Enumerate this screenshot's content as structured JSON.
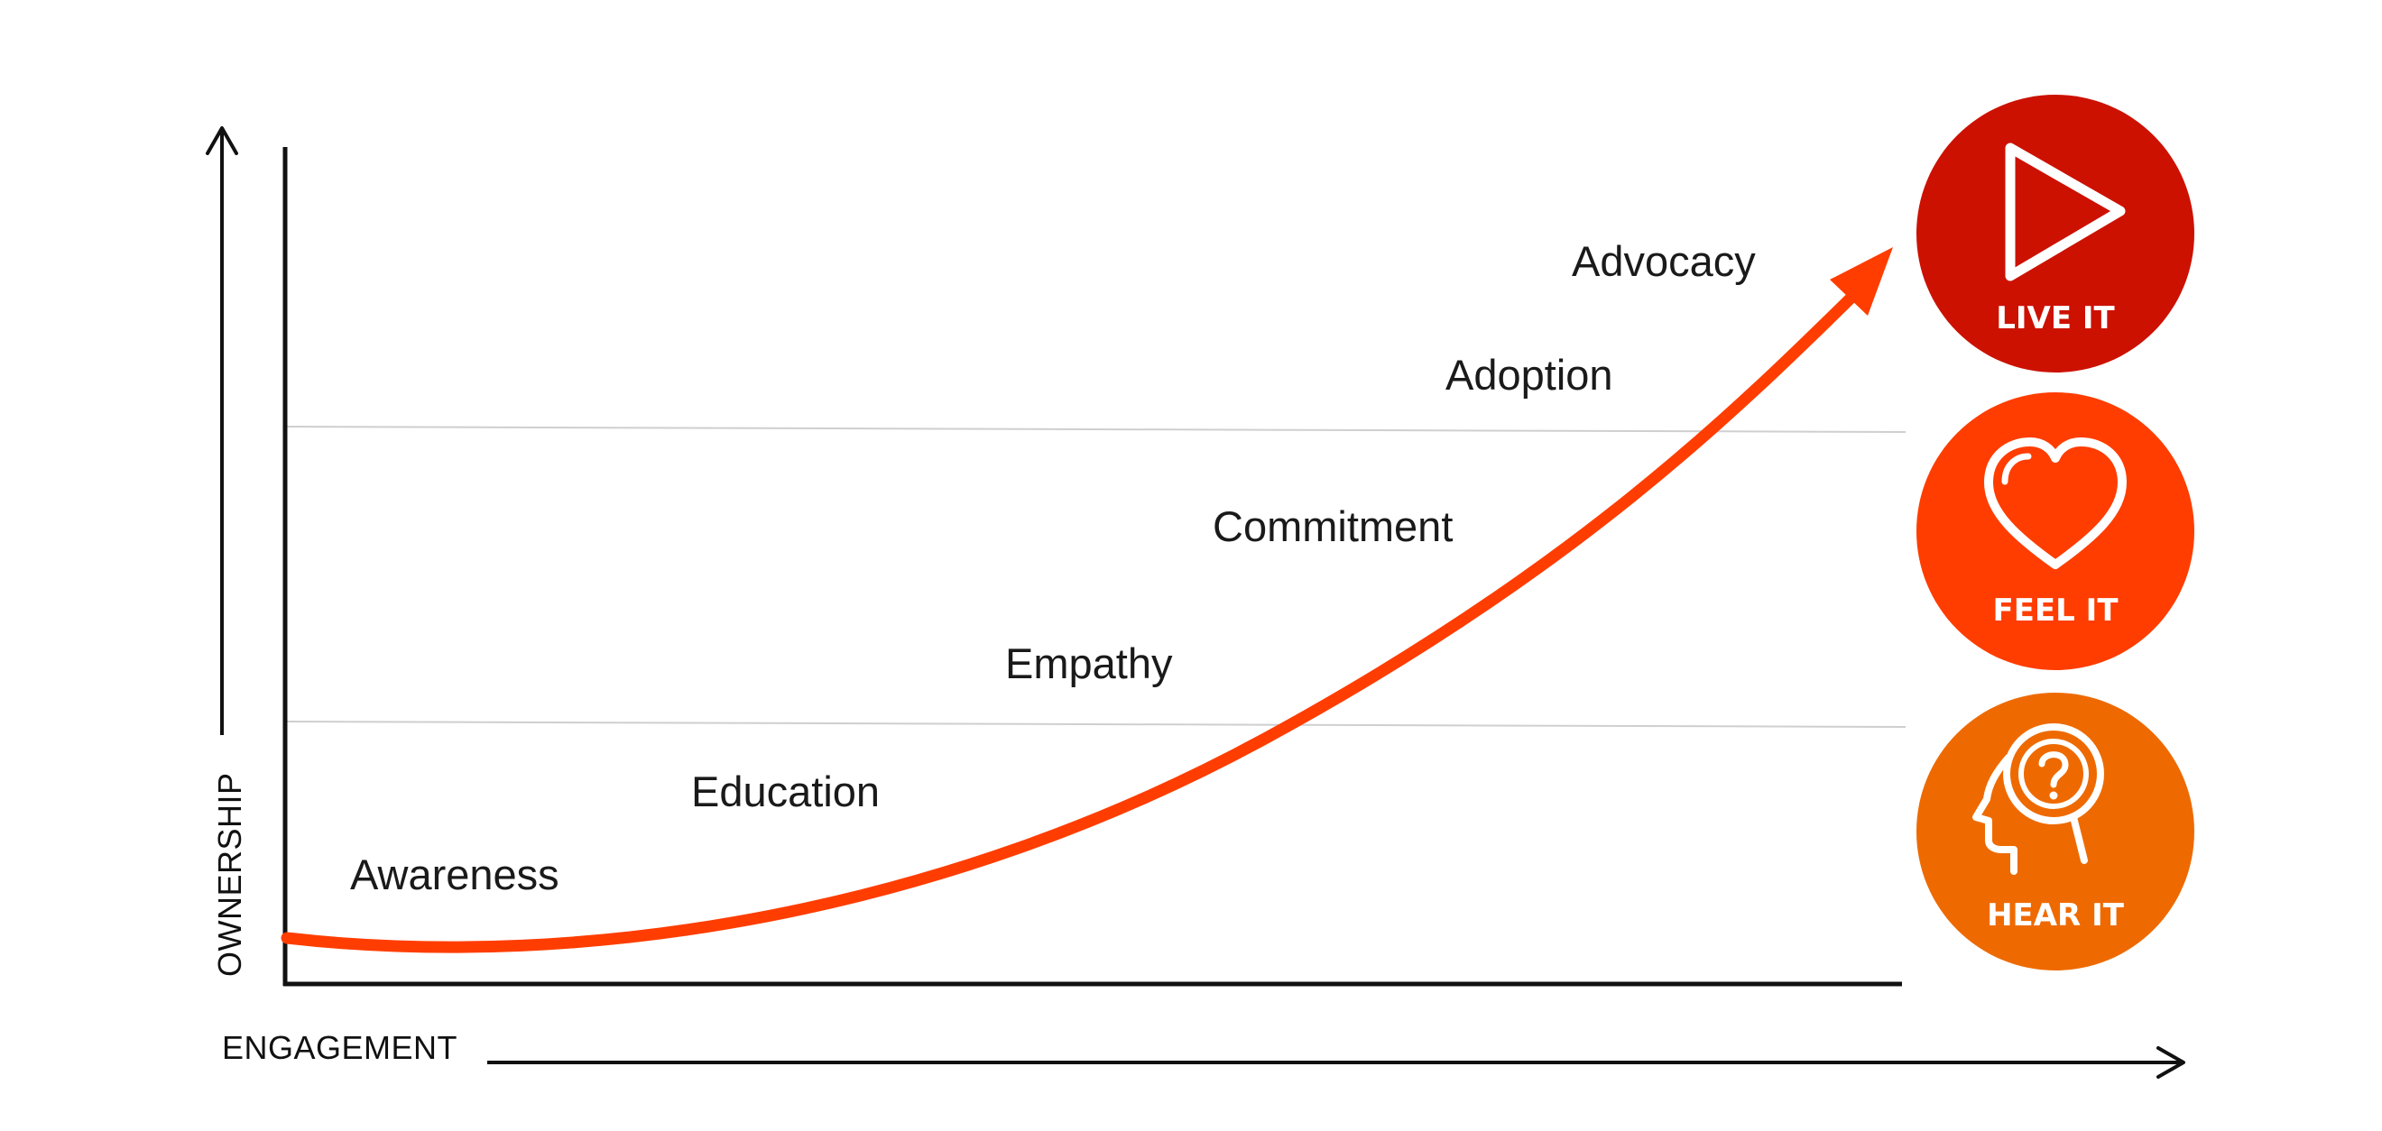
{
  "axes": {
    "y_label": "OWNERSHIP",
    "x_label": "ENGAGEMENT"
  },
  "stages": [
    {
      "label": "Awareness"
    },
    {
      "label": "Education"
    },
    {
      "label": "Empathy"
    },
    {
      "label": "Commitment"
    },
    {
      "label": "Adoption"
    },
    {
      "label": "Advocacy"
    }
  ],
  "badges": [
    {
      "label": "LIVE IT",
      "icon": "play-icon",
      "color": "#CC1100"
    },
    {
      "label": "FEEL IT",
      "icon": "heart-icon",
      "color": "#FF3D00"
    },
    {
      "label": "HEAR IT",
      "icon": "head-question-icon",
      "color": "#EE6A00"
    }
  ],
  "curve_color": "#FF3D00"
}
